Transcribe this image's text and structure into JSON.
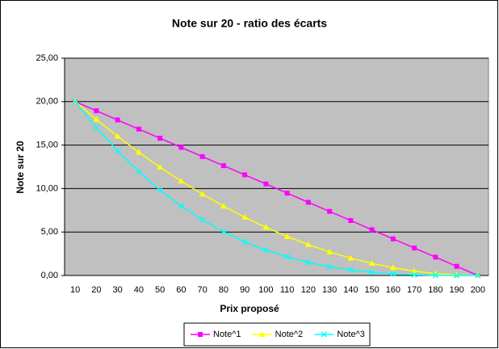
{
  "chart_data": {
    "type": "line",
    "title": "Note sur 20 - ratio des écarts",
    "x_label": "Prix proposé",
    "y_label": "Note sur 20",
    "categories": [
      "10",
      "20",
      "30",
      "40",
      "50",
      "60",
      "70",
      "80",
      "90",
      "100",
      "110",
      "120",
      "130",
      "140",
      "150",
      "160",
      "170",
      "180",
      "190",
      "200"
    ],
    "series": [
      {
        "name": "Note^1",
        "color": "#ff00ff",
        "marker": "square",
        "values": [
          20,
          18.95,
          17.89,
          16.84,
          15.79,
          14.74,
          13.68,
          12.63,
          11.58,
          10.53,
          9.47,
          8.42,
          7.37,
          6.32,
          5.26,
          4.21,
          3.16,
          2.11,
          1.05,
          0
        ]
      },
      {
        "name": "Note^2",
        "color": "#ffff00",
        "marker": "triangle",
        "values": [
          20,
          17.95,
          16.01,
          14.18,
          12.47,
          10.86,
          9.36,
          7.98,
          6.7,
          5.54,
          4.49,
          3.55,
          2.71,
          1.99,
          1.39,
          0.89,
          0.5,
          0.22,
          0.06,
          0
        ]
      },
      {
        "name": "Note^3",
        "color": "#00ffff",
        "marker": "x",
        "values": [
          20,
          17.01,
          14.33,
          11.94,
          9.84,
          8.0,
          6.41,
          5.04,
          3.88,
          2.92,
          2.13,
          1.49,
          1.0,
          0.63,
          0.36,
          0.19,
          0.08,
          0.02,
          0.0,
          0
        ]
      }
    ],
    "ylim": [
      0,
      25
    ],
    "yticks": [
      {
        "value": 0,
        "label": "0,00"
      },
      {
        "value": 5,
        "label": "5,00"
      },
      {
        "value": 10,
        "label": "10,00"
      },
      {
        "value": 15,
        "label": "15,00"
      },
      {
        "value": 20,
        "label": "20,00"
      },
      {
        "value": 25,
        "label": "25,00"
      }
    ],
    "grid": true,
    "legend": "bottom",
    "plot_background": "#c0c0c0"
  }
}
